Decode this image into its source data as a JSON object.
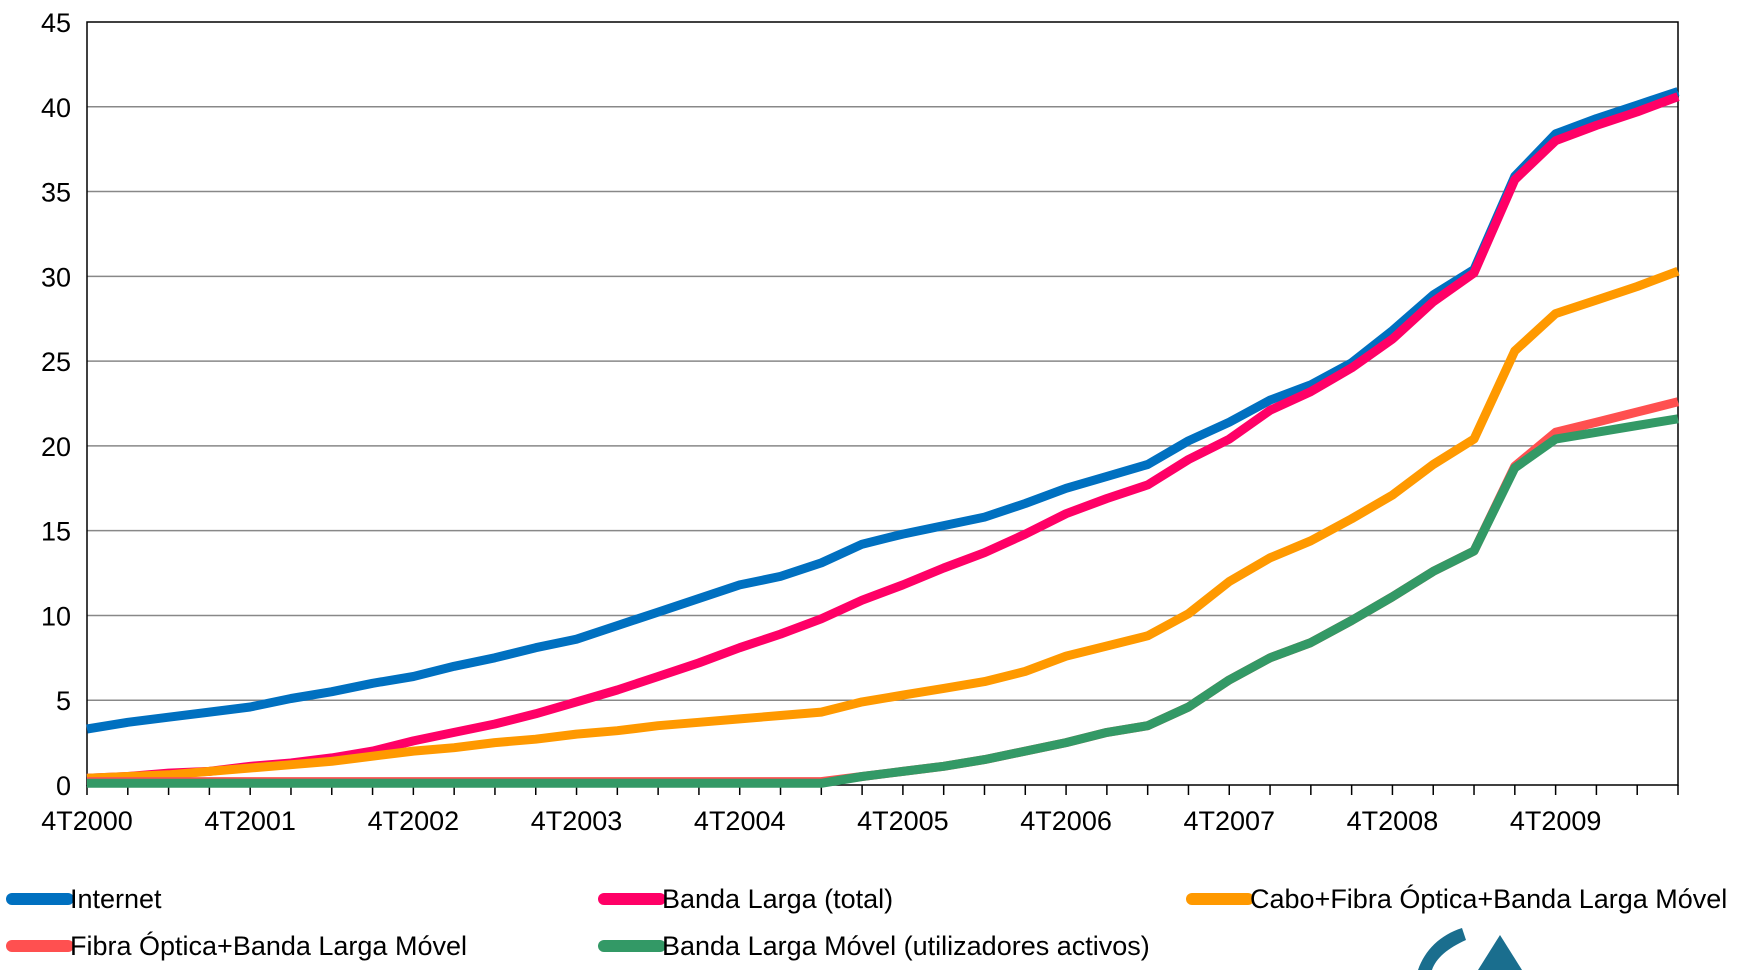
{
  "chart_data": {
    "type": "line",
    "title": "",
    "xlabel": "",
    "ylabel": "",
    "ylim": [
      0,
      45
    ],
    "yticks": [
      0,
      5,
      10,
      15,
      20,
      25,
      30,
      35,
      40,
      45
    ],
    "x": [
      "4T2000",
      "1T2001",
      "2T2001",
      "3T2001",
      "4T2001",
      "1T2002",
      "2T2002",
      "3T2002",
      "4T2002",
      "1T2003",
      "2T2003",
      "3T2003",
      "4T2003",
      "1T2004",
      "2T2004",
      "3T2004",
      "4T2004",
      "1T2005",
      "2T2005",
      "3T2005",
      "4T2005",
      "1T2006",
      "2T2006",
      "3T2006",
      "4T2006",
      "1T2007",
      "2T2007",
      "3T2007",
      "4T2007",
      "1T2008",
      "2T2008",
      "3T2008",
      "4T2008",
      "1T2009",
      "2T2009",
      "3T2009",
      "4T2009",
      "1T2010",
      "2T2010",
      "3T2010"
    ],
    "x_tick_labels": [
      "4T2000",
      "4T2001",
      "4T2002",
      "4T2003",
      "4T2004",
      "4T2005",
      "4T2006",
      "4T2007",
      "4T2008",
      "4T2009"
    ],
    "grid": "horizontal",
    "legend_position": "bottom",
    "series": [
      {
        "name": "Internet",
        "color": "#0070C0",
        "values": [
          3.3,
          3.7,
          4.0,
          4.3,
          4.6,
          5.1,
          5.5,
          6.0,
          6.4,
          7.0,
          7.5,
          8.1,
          8.6,
          9.4,
          10.2,
          11.0,
          11.8,
          12.3,
          13.1,
          14.2,
          14.8,
          15.3,
          15.8,
          16.6,
          17.5,
          18.2,
          18.9,
          20.3,
          21.4,
          22.7,
          23.6,
          24.9,
          26.8,
          28.9,
          30.4,
          35.9,
          38.4,
          39.3,
          40.1,
          40.9
        ]
      },
      {
        "name": "Banda Larga (total)",
        "color": "#FF0066",
        "values": [
          0.4,
          0.5,
          0.7,
          0.8,
          1.1,
          1.3,
          1.6,
          2.0,
          2.6,
          3.1,
          3.6,
          4.2,
          4.9,
          5.6,
          6.4,
          7.2,
          8.1,
          8.9,
          9.8,
          10.9,
          11.8,
          12.8,
          13.7,
          14.8,
          16.0,
          16.9,
          17.7,
          19.2,
          20.4,
          22.1,
          23.2,
          24.6,
          26.3,
          28.5,
          30.2,
          35.7,
          38.0,
          38.9,
          39.7,
          40.6
        ]
      },
      {
        "name": "Cabo+Fibra Óptica+Banda Larga Móvel",
        "color": "#FF9900",
        "values": [
          0.4,
          0.5,
          0.6,
          0.8,
          1.0,
          1.2,
          1.4,
          1.7,
          2.0,
          2.2,
          2.5,
          2.7,
          3.0,
          3.2,
          3.5,
          3.7,
          3.9,
          4.1,
          4.3,
          4.9,
          5.3,
          5.7,
          6.1,
          6.7,
          7.6,
          8.2,
          8.8,
          10.1,
          12.0,
          13.4,
          14.4,
          15.7,
          17.1,
          18.9,
          20.4,
          25.6,
          27.8,
          28.6,
          29.4,
          30.3
        ]
      },
      {
        "name": "Fibra Óptica+Banda Larga Móvel",
        "color": "#FF5050",
        "values": [
          0.2,
          0.2,
          0.2,
          0.2,
          0.2,
          0.2,
          0.2,
          0.2,
          0.2,
          0.2,
          0.2,
          0.2,
          0.2,
          0.2,
          0.2,
          0.2,
          0.2,
          0.2,
          0.2,
          0.5,
          0.8,
          1.1,
          1.5,
          2.0,
          2.5,
          3.1,
          3.5,
          4.6,
          6.2,
          7.5,
          8.4,
          9.7,
          11.1,
          12.6,
          13.8,
          18.8,
          20.8,
          21.4,
          22.0,
          22.6
        ]
      },
      {
        "name": "Banda Larga Móvel (utilizadores activos)",
        "color": "#339966",
        "values": [
          0.1,
          0.1,
          0.1,
          0.1,
          0.1,
          0.1,
          0.1,
          0.1,
          0.1,
          0.1,
          0.1,
          0.1,
          0.1,
          0.1,
          0.1,
          0.1,
          0.1,
          0.1,
          0.1,
          0.5,
          0.8,
          1.1,
          1.5,
          2.0,
          2.5,
          3.1,
          3.5,
          4.6,
          6.2,
          7.5,
          8.4,
          9.7,
          11.1,
          12.6,
          13.8,
          18.7,
          20.4,
          20.8,
          21.2,
          21.6
        ]
      }
    ]
  }
}
